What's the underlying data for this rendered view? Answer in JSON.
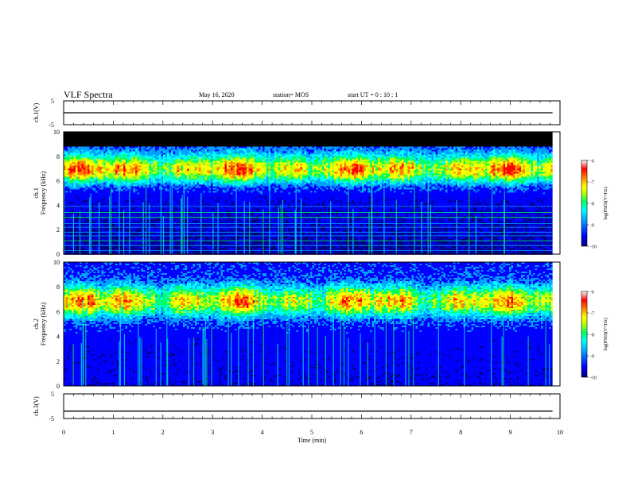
{
  "header": {
    "title": "VLF Spectra",
    "date": "May 16, 2020",
    "station": "station= MOS",
    "start_ut": "start  UT =   0 : 10 : 1"
  },
  "colors": {
    "scale": [
      "#000080",
      "#0000ff",
      "#00a0ff",
      "#00ffff",
      "#00ff60",
      "#c0ff00",
      "#ffff00",
      "#ff8000",
      "#ff0000",
      "#ffffff"
    ],
    "line": "#000000"
  },
  "chart_data": [
    {
      "type": "line",
      "panel": "ch1-voltage",
      "ylabel": "ch.1(V)",
      "yticks": [
        "5",
        "-5"
      ],
      "ylim": [
        -5,
        5
      ],
      "x": [
        0,
        10
      ],
      "values": [
        0,
        0
      ]
    },
    {
      "type": "heatmap",
      "panel": "ch1-spectrogram",
      "ylabel_channel": "ch.1",
      "ylabel": "Frequency (kHz)",
      "yticks": [
        "0",
        "2",
        "4",
        "6",
        "8",
        "10"
      ],
      "ylim": [
        0,
        10
      ],
      "xlim": [
        0,
        10
      ],
      "band_center_khz": 7.0,
      "band_width_khz": 1.1,
      "peak_level": -6.3,
      "background_level_low": -9.7,
      "background_level_high": -8.8,
      "data_top_khz": 8.8,
      "line_frequencies_khz": [
        0.3,
        0.7,
        1.1,
        1.5,
        1.8,
        2.2,
        2.5,
        3.0,
        3.4,
        3.9
      ],
      "colorbar": {
        "label": "log(PSD)(V²/Hz)",
        "ticks": [
          "-6",
          "-7",
          "-8",
          "-9",
          "-10"
        ],
        "range": [
          -10,
          -6
        ]
      }
    },
    {
      "type": "heatmap",
      "panel": "ch2-spectrogram",
      "ylabel_channel": "ch.2",
      "ylabel": "Frequency (kHz)",
      "yticks": [
        "0",
        "2",
        "4",
        "6",
        "8",
        "10"
      ],
      "ylim": [
        0,
        10
      ],
      "xlim": [
        0,
        10
      ],
      "band_center_khz": 6.9,
      "band_width_khz": 1.2,
      "peak_level": -6.4,
      "background_level_low": -9.3,
      "background_level_high": -9.0,
      "data_top_khz": 10,
      "line_frequencies_khz": [],
      "colorbar": {
        "label": "log(PSD)(V²/Hz)",
        "ticks": [
          "-6",
          "-7",
          "-8",
          "-9",
          "-10"
        ],
        "range": [
          -10,
          -6
        ]
      }
    },
    {
      "type": "line",
      "panel": "ch3-voltage",
      "ylabel": "ch.3(V)",
      "yticks": [
        "5",
        "-5"
      ],
      "ylim": [
        -5,
        5
      ],
      "x": [
        0,
        10
      ],
      "values": [
        -2,
        -2
      ]
    }
  ],
  "xaxis": {
    "label": "Time (min)",
    "ticks": [
      "0",
      "1",
      "2",
      "3",
      "4",
      "5",
      "6",
      "7",
      "8",
      "9",
      "10"
    ],
    "range": [
      0,
      10
    ],
    "data_end": 9.85
  }
}
